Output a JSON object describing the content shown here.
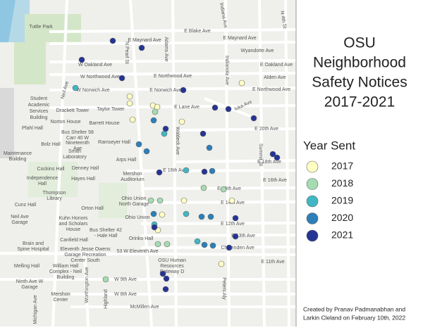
{
  "title_lines": [
    "OSU",
    "Neighborhood",
    "Safety Notices",
    "2017-2021"
  ],
  "legend": {
    "title": "Year Sent",
    "items": [
      {
        "label": "2017",
        "color": "#ffffc4"
      },
      {
        "label": "2018",
        "color": "#a6dbb1"
      },
      {
        "label": "2019",
        "color": "#41b6c4"
      },
      {
        "label": "2020",
        "color": "#2c7fb8"
      },
      {
        "label": "2021",
        "color": "#253494"
      }
    ]
  },
  "credit": [
    "Created by Pranav Padmanabhan and",
    "Larkin Cleland on February 10th, 2022"
  ],
  "map_labels": [
    "Tuttle Park",
    "E Blake Ave",
    "E Maynard Ave",
    "E Maynard Ave",
    "Wyandotte Ave",
    "E Oakland Ave",
    "W Oakland Ave",
    "Alden Ave",
    "W Northwood Ave",
    "E Northwood Ave",
    "W Norwich Ave",
    "E Norwich Ave",
    "E Northwood Ave",
    "Student",
    "Academic",
    "Services",
    "Building",
    "Drackett Tower",
    "Taylor Tower",
    "E Lane Ave",
    "Norton House",
    "Barrett House",
    "Pfahl Hall",
    "Bus Shelter 58",
    "Carr 40 W",
    "Nineteenth",
    "Ave",
    "Bolz Hall",
    "Smith",
    "Laboratory",
    "Ramseyer Hall",
    "Maintenance",
    "Building",
    "Arps Hall",
    "Cockins Hall",
    "Denney Hall",
    "Independence",
    "Hall",
    "Hayes Hall",
    "Mershon",
    "Auditorium",
    "E 16th Ave",
    "Thompson",
    "Library",
    "Ohio Union",
    "North Garage",
    "Cunz Hall",
    "Orton Hall",
    "Neil Ave",
    "Garage",
    "Kuhn Honors",
    "and Scholars",
    "House",
    "Ohio Union",
    "Bus Shelter 42",
    "- Hale Hall",
    "Orinko Hall",
    "Canfield Hall",
    "Brain and",
    "Spine Hospital",
    "Eleventh Jesse Owens",
    "Garage Recreation",
    "Center South",
    "53 W Eleventh Ave",
    "OSU Human",
    "Resources",
    "Gateway D",
    "Melling Hall",
    "William Hall",
    "Complex - Neil",
    "Building",
    "Ninth Ave W",
    "Garage",
    "W 9th Ave",
    "W 8th Ave",
    "Mershon",
    "Center",
    "McMillen Ave",
    "E 11th Ave",
    "E 13th Ave",
    "E 12th Ave",
    "E 14th Ave",
    "E 15th Ave",
    "Chittenden Ave",
    "E 20th Ave",
    "E 18th Ave",
    "E 16th Ave",
    "Iuka Ave",
    "Indiana Ave",
    "Indianola Ave",
    "Summit St",
    "N 4th St",
    "Waldeck Ave",
    "Neil Ave",
    "N Pearl St",
    "Adams Ave",
    "Peters Aly",
    "Highland",
    "Worthington Ave",
    "Michigan Ave"
  ]
}
